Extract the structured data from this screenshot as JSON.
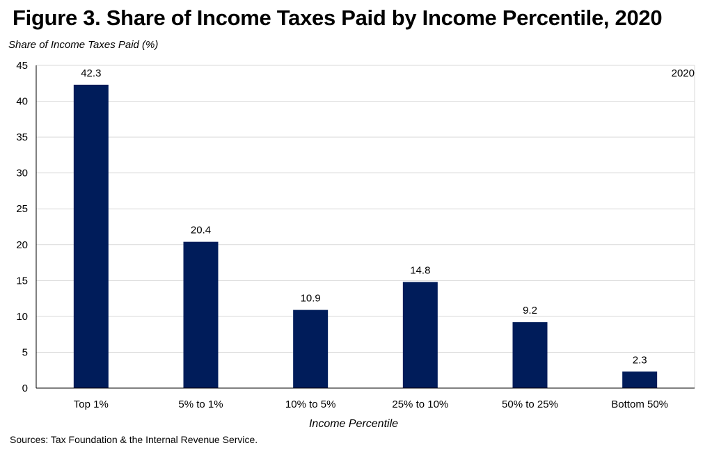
{
  "header": {
    "title": "Figure 3. Share of Income Taxes Paid by Income Percentile, 2020"
  },
  "footer": {
    "source": "Sources: Tax Foundation & the Internal Revenue Service."
  },
  "chart_data": {
    "type": "bar",
    "title": "Figure 3. Share of Income Taxes Paid by Income Percentile, 2020",
    "xlabel": "Income Percentile",
    "ylabel": "Share of Income Taxes Paid (%)",
    "categories": [
      "Top 1%",
      "5% to 1%",
      "10% to 5%",
      "25% to 10%",
      "50% to 25%",
      "Bottom 50%"
    ],
    "series": [
      {
        "name": "2020",
        "values": [
          42.3,
          20.4,
          10.9,
          14.8,
          9.2,
          2.3
        ],
        "color": "#001c5a"
      }
    ],
    "data_labels": [
      "42.3",
      "20.4",
      "10.9",
      "14.8",
      "9.2",
      "2.3"
    ],
    "ylim": [
      0,
      45
    ],
    "yticks": [
      0,
      5,
      10,
      15,
      20,
      25,
      30,
      35,
      40,
      45
    ],
    "grid": true,
    "legend": "top-right"
  }
}
